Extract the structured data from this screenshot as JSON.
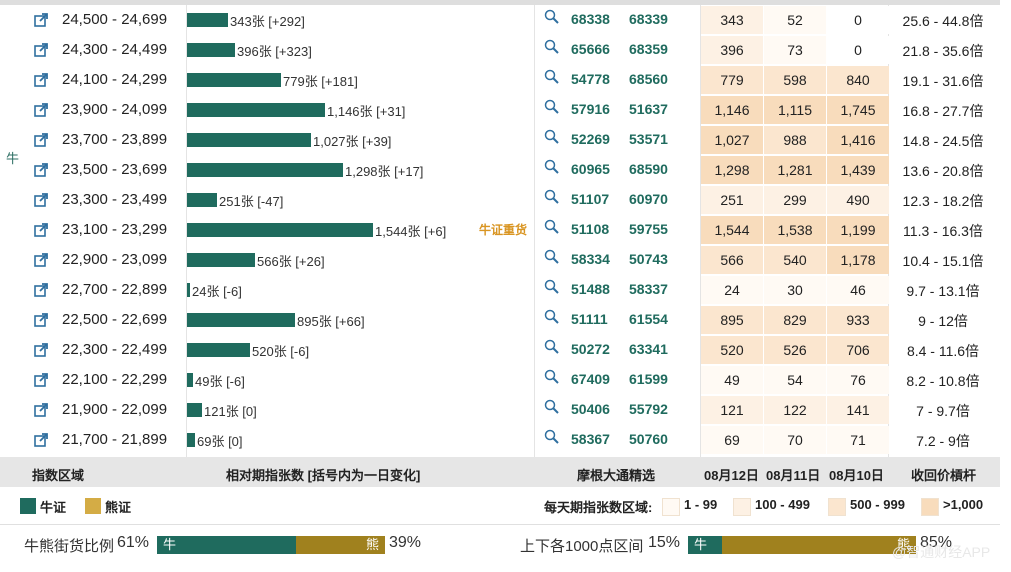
{
  "side_label": "牛",
  "rows": [
    {
      "range": "24,500 - 24,699",
      "qty": 343,
      "bar_label": "343张 [+292]",
      "tag": "",
      "code1": "68338",
      "code2": "68339",
      "d12": "343",
      "d11": "52",
      "d10": "0",
      "mult": "25.6 - 44.8倍"
    },
    {
      "range": "24,300 - 24,499",
      "qty": 396,
      "bar_label": "396张 [+323]",
      "tag": "",
      "code1": "65666",
      "code2": "68359",
      "d12": "396",
      "d11": "73",
      "d10": "0",
      "mult": "21.8 - 35.6倍"
    },
    {
      "range": "24,100 - 24,299",
      "qty": 779,
      "bar_label": "779张 [+181]",
      "tag": "",
      "code1": "54778",
      "code2": "68560",
      "d12": "779",
      "d11": "598",
      "d10": "840",
      "mult": "19.1 - 31.6倍"
    },
    {
      "range": "23,900 - 24,099",
      "qty": 1146,
      "bar_label": "1,146张 [+31]",
      "tag": "",
      "code1": "57916",
      "code2": "51637",
      "d12": "1,146",
      "d11": "1,115",
      "d10": "1,745",
      "mult": "16.8 - 27.7倍"
    },
    {
      "range": "23,700 - 23,899",
      "qty": 1027,
      "bar_label": "1,027张 [+39]",
      "tag": "",
      "code1": "52269",
      "code2": "53571",
      "d12": "1,027",
      "d11": "988",
      "d10": "1,416",
      "mult": "14.8 - 24.5倍"
    },
    {
      "range": "23,500 - 23,699",
      "qty": 1298,
      "bar_label": "1,298张 [+17]",
      "tag": "",
      "code1": "60965",
      "code2": "68590",
      "d12": "1,298",
      "d11": "1,281",
      "d10": "1,439",
      "mult": "13.6 - 20.8倍"
    },
    {
      "range": "23,300 - 23,499",
      "qty": 251,
      "bar_label": "251张 [-47]",
      "tag": "",
      "code1": "51107",
      "code2": "60970",
      "d12": "251",
      "d11": "299",
      "d10": "490",
      "mult": "12.3 - 18.2倍"
    },
    {
      "range": "23,100 - 23,299",
      "qty": 1544,
      "bar_label": "1,544张 [+6]",
      "tag": "牛证重货",
      "code1": "51108",
      "code2": "59755",
      "d12": "1,544",
      "d11": "1,538",
      "d10": "1,199",
      "mult": "11.3 - 16.3倍"
    },
    {
      "range": "22,900 - 23,099",
      "qty": 566,
      "bar_label": "566张 [+26]",
      "tag": "",
      "code1": "58334",
      "code2": "50743",
      "d12": "566",
      "d11": "540",
      "d10": "1,178",
      "mult": "10.4 - 15.1倍"
    },
    {
      "range": "22,700 - 22,899",
      "qty": 24,
      "bar_label": "24张 [-6]",
      "tag": "",
      "code1": "51488",
      "code2": "58337",
      "d12": "24",
      "d11": "30",
      "d10": "46",
      "mult": "9.7 - 13.1倍"
    },
    {
      "range": "22,500 - 22,699",
      "qty": 895,
      "bar_label": "895张 [+66]",
      "tag": "",
      "code1": "51111",
      "code2": "61554",
      "d12": "895",
      "d11": "829",
      "d10": "933",
      "mult": "9 - 12倍"
    },
    {
      "range": "22,300 - 22,499",
      "qty": 520,
      "bar_label": "520张 [-6]",
      "tag": "",
      "code1": "50272",
      "code2": "63341",
      "d12": "520",
      "d11": "526",
      "d10": "706",
      "mult": "8.4 - 11.6倍"
    },
    {
      "range": "22,100 - 22,299",
      "qty": 49,
      "bar_label": "49张 [-6]",
      "tag": "",
      "code1": "67409",
      "code2": "61599",
      "d12": "49",
      "d11": "54",
      "d10": "76",
      "mult": "8.2 - 10.8倍"
    },
    {
      "range": "21,900 - 22,099",
      "qty": 121,
      "bar_label": "121张 [0]",
      "tag": "",
      "code1": "50406",
      "code2": "55792",
      "d12": "121",
      "d11": "122",
      "d10": "141",
      "mult": "7 - 9.7倍"
    },
    {
      "range": "21,700 - 21,899",
      "qty": 69,
      "bar_label": "69张 [0]",
      "tag": "",
      "code1": "58367",
      "code2": "50760",
      "d12": "69",
      "d11": "70",
      "d10": "71",
      "mult": "7.2 - 9倍"
    }
  ],
  "header": {
    "range": "指数区域",
    "qty": "相对期指张数 [括号内为一日变化]",
    "picks": "摩根大通精选",
    "d12": "08月12日",
    "d11": "08月11日",
    "d10": "08月10日",
    "mult": "收回价槓杆"
  },
  "legend": {
    "bull": "牛证",
    "bear": "熊证",
    "bucket_title": "每天期指张数区域:",
    "buckets": [
      {
        "label": "1 - 99",
        "color": "#fffaf4"
      },
      {
        "label": "100 - 499",
        "color": "#fdf1e4"
      },
      {
        "label": "500 - 999",
        "color": "#fbe6cf"
      },
      {
        "label": ">1,000",
        "color": "#f8dcbc"
      }
    ]
  },
  "ratios": {
    "street_label": "牛熊街货比例",
    "street_bull_pct": "61%",
    "street_bear_pct": "39%",
    "street_bull_value": 61,
    "range_label": "上下各1000点区间",
    "range_bull_pct": "15%",
    "range_bear_pct": "85%",
    "range_bull_value": 15,
    "bull_char": "牛",
    "bear_char": "熊"
  },
  "watermark": "@智通财经APP",
  "colors": {
    "bull": "#1f6b5e",
    "bear": "#a0811e",
    "tag": "#d99522"
  }
}
